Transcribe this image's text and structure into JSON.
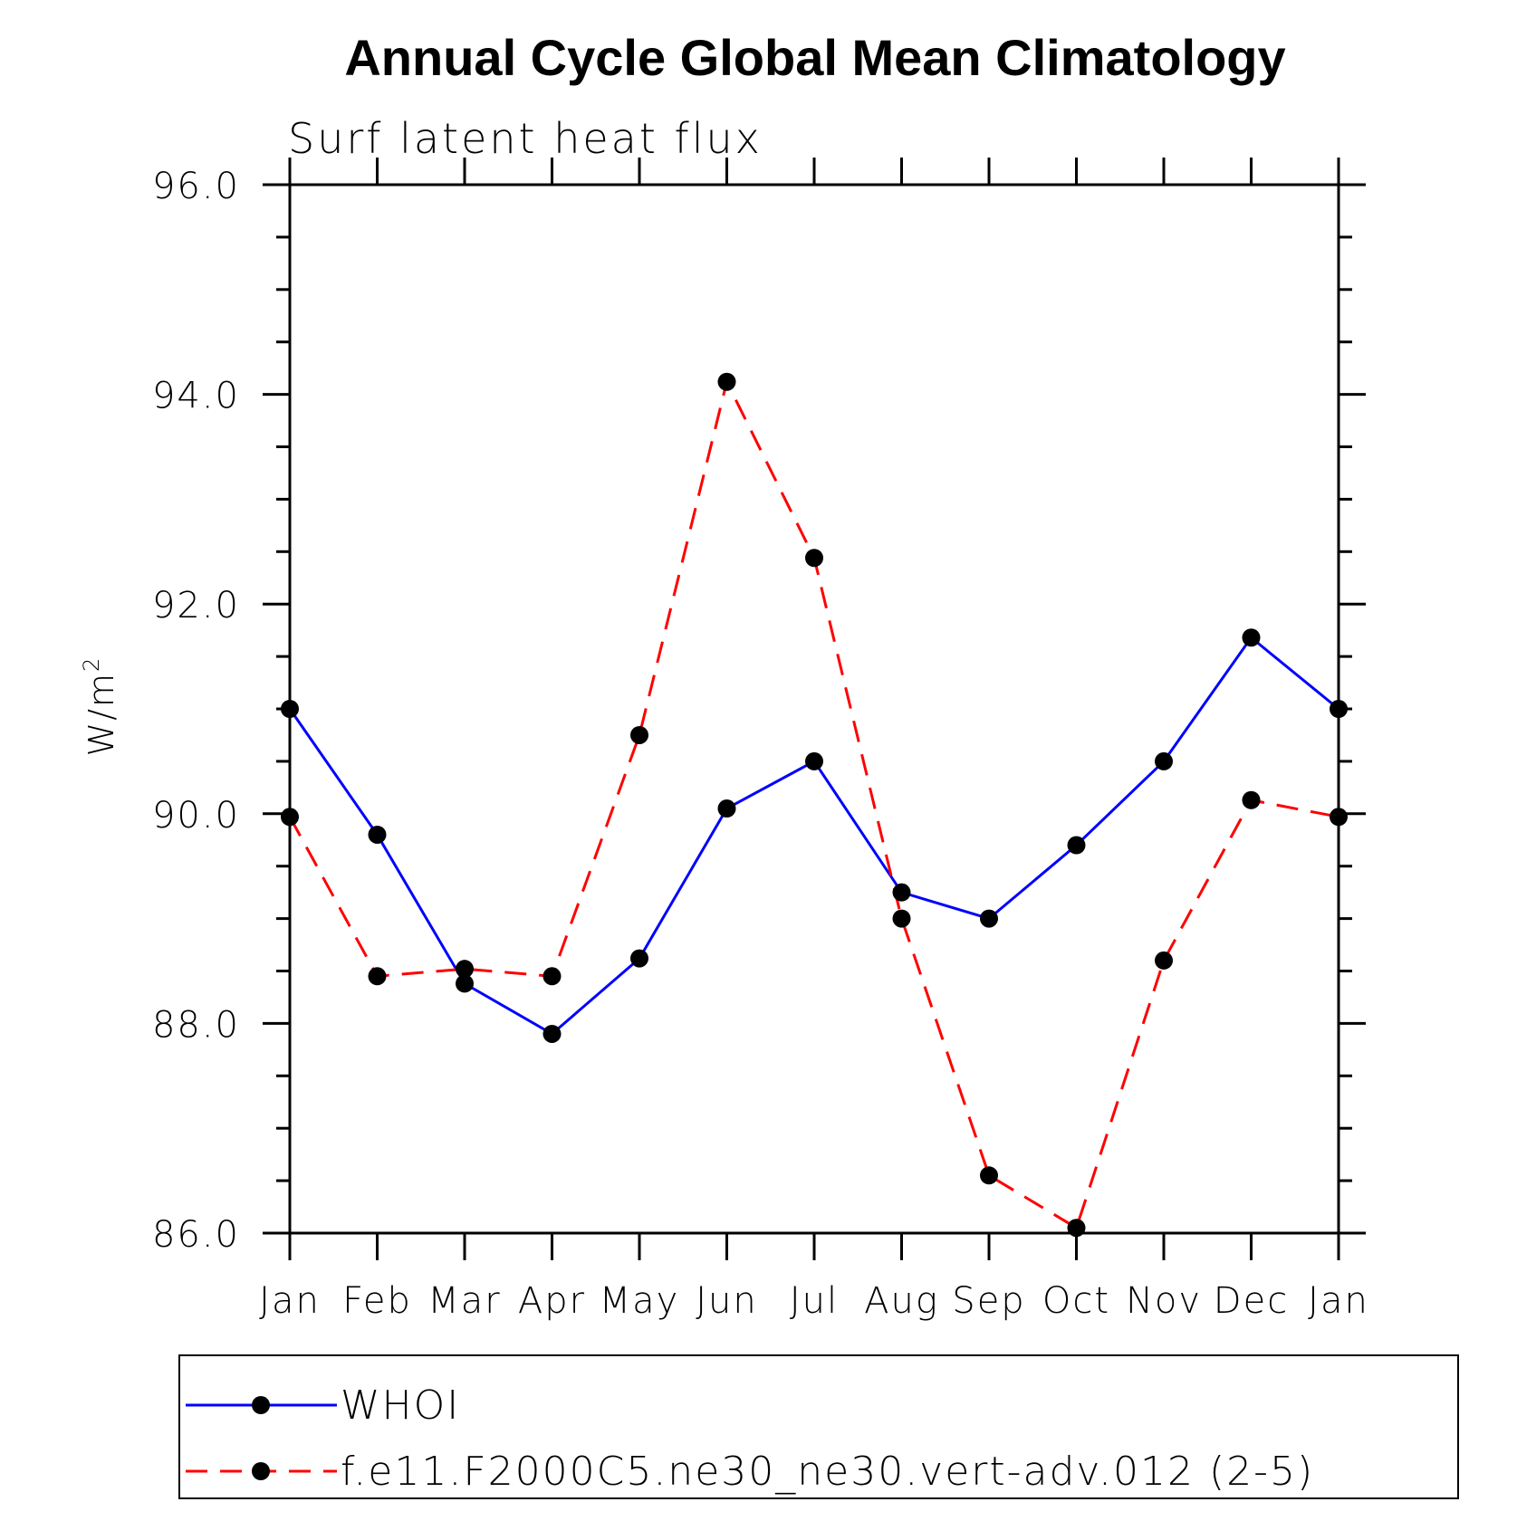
{
  "chart_data": {
    "type": "line",
    "title": "Annual Cycle Global Mean Climatology",
    "subtitle": "Surf latent heat flux",
    "xlabel": "",
    "ylabel": "W/m",
    "ylabel_superscript": "2",
    "categories": [
      "Jan",
      "Feb",
      "Mar",
      "Apr",
      "May",
      "Jun",
      "Jul",
      "Aug",
      "Sep",
      "Oct",
      "Nov",
      "Dec",
      "Jan"
    ],
    "ylim": [
      86.0,
      96.0
    ],
    "yticks": [
      "86.0",
      "88.0",
      "90.0",
      "92.0",
      "94.0",
      "96.0"
    ],
    "series": [
      {
        "name": "WHOI",
        "color": "#0000ff",
        "dash": "solid",
        "values": [
          91.0,
          89.8,
          88.38,
          87.9,
          88.62,
          90.05,
          90.5,
          89.25,
          89.0,
          89.7,
          90.5,
          91.68,
          91.0
        ]
      },
      {
        "name": "f.e11.F2000C5.ne30_ne30.vert-adv.012 (2-5)",
        "color": "#ff0000",
        "dash": "dashed",
        "values": [
          89.97,
          88.45,
          88.52,
          88.45,
          90.75,
          94.12,
          92.44,
          89.0,
          86.55,
          86.05,
          88.6,
          90.13,
          89.97
        ]
      }
    ],
    "legend_position": "bottom"
  }
}
